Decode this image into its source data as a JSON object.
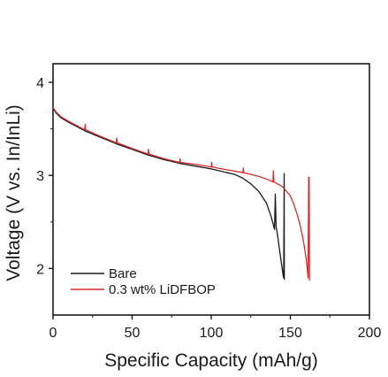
{
  "chart_data": {
    "type": "line",
    "xlabel": "Specific Capacity (mAh/g)",
    "ylabel": "Voltage (V vs. In/InLi)",
    "xlim": [
      0,
      200
    ],
    "ylim": [
      1.5,
      4.2
    ],
    "xticks": [
      0,
      50,
      100,
      150,
      200
    ],
    "yticks": [
      2,
      3,
      4
    ],
    "grid": false,
    "legend": "bottom-left",
    "series": [
      {
        "name": "Bare",
        "color": "#1a1a1a",
        "x": [
          0,
          2,
          5,
          10,
          20,
          30,
          40,
          50,
          60,
          70,
          80,
          90,
          100,
          110,
          115,
          120,
          125,
          130,
          135,
          138,
          140,
          140.5,
          141,
          142,
          143,
          144,
          145,
          145.5,
          145.8,
          146,
          146.1,
          146.2
        ],
        "y": [
          3.72,
          3.67,
          3.62,
          3.57,
          3.48,
          3.41,
          3.34,
          3.28,
          3.22,
          3.17,
          3.13,
          3.1,
          3.07,
          3.03,
          3.01,
          2.97,
          2.91,
          2.83,
          2.7,
          2.55,
          2.42,
          2.8,
          2.45,
          2.35,
          2.22,
          2.1,
          1.98,
          1.92,
          1.9,
          2.6,
          3.02,
          1.88
        ]
      },
      {
        "name": "0.3 wt% LiDFBOP",
        "color": "#d42a2a",
        "x": [
          0,
          2,
          5,
          10,
          20,
          20.3,
          20.6,
          30,
          40,
          40.3,
          40.6,
          50,
          60,
          60.3,
          60.6,
          70,
          80,
          80.3,
          80.6,
          90,
          100,
          100.3,
          100.6,
          110,
          120,
          120.3,
          120.6,
          130,
          135,
          139,
          139.3,
          139.6,
          145,
          150,
          152,
          154,
          156,
          158,
          159,
          160,
          160.8,
          161.2,
          161.6,
          161.9,
          162.1
        ],
        "y": [
          3.73,
          3.68,
          3.63,
          3.58,
          3.49,
          3.55,
          3.49,
          3.42,
          3.35,
          3.4,
          3.35,
          3.29,
          3.23,
          3.28,
          3.23,
          3.18,
          3.14,
          3.18,
          3.14,
          3.12,
          3.09,
          3.14,
          3.09,
          3.06,
          3.03,
          3.08,
          3.03,
          2.99,
          2.96,
          2.93,
          3.05,
          2.93,
          2.88,
          2.78,
          2.7,
          2.6,
          2.48,
          2.32,
          2.22,
          2.1,
          1.98,
          1.9,
          2.98,
          2.98,
          1.87
        ]
      }
    ]
  }
}
